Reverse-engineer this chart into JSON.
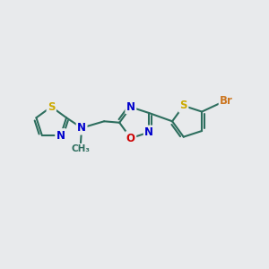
{
  "background_color": "#e8eaec",
  "bond_color": "#2d6e5e",
  "bond_width": 1.5,
  "atom_colors": {
    "S": "#ccaa00",
    "N": "#0000cc",
    "O": "#cc0000",
    "Br": "#cc7722",
    "C": "#2d6e5e"
  },
  "font_size": 8.5,
  "dbo": 0.09
}
